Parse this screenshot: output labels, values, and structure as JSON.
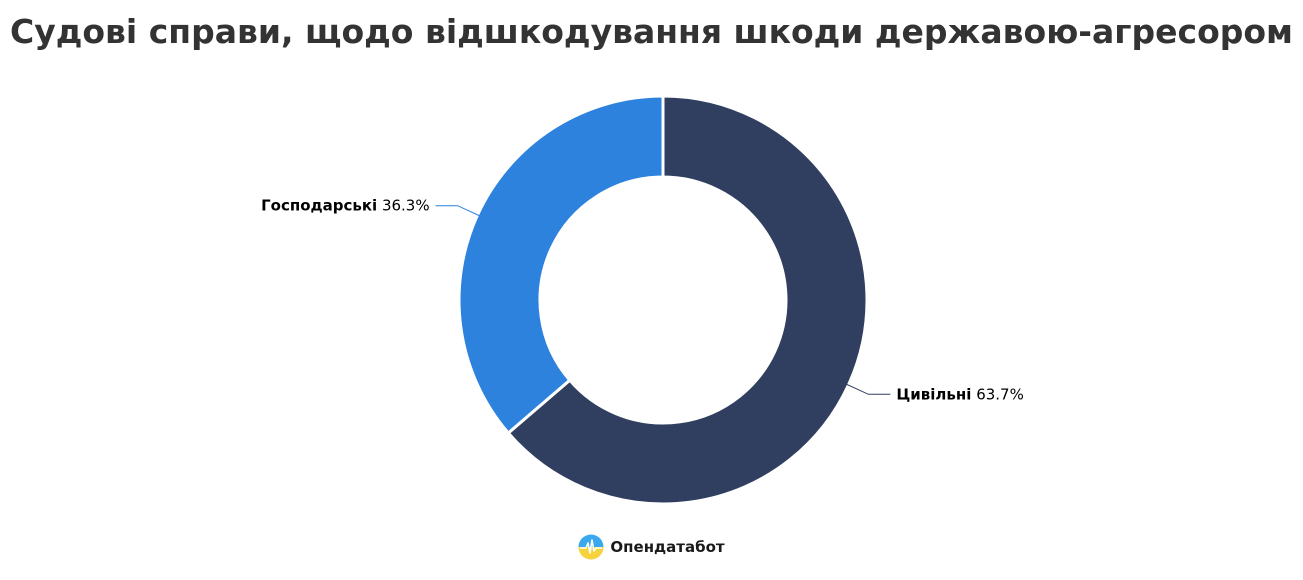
{
  "title": "Судові справи, щодо відшкодування шкоди державою-агресором",
  "chart_data": {
    "type": "pie",
    "donut": true,
    "title": "Судові справи, щодо відшкодування шкоди державою-агресором",
    "slices": [
      {
        "name": "Цивільні",
        "value": 63.7,
        "label_value": "63.7%",
        "color": "#303F5F"
      },
      {
        "name": "Господарські",
        "value": 36.3,
        "label_value": "36.3%",
        "color": "#2D82DE"
      }
    ],
    "legend": "none",
    "start_angle_deg": 0,
    "direction": "clockwise"
  },
  "brand": {
    "name": "Опендатабот",
    "icon": "opendatabot-logo-icon"
  }
}
